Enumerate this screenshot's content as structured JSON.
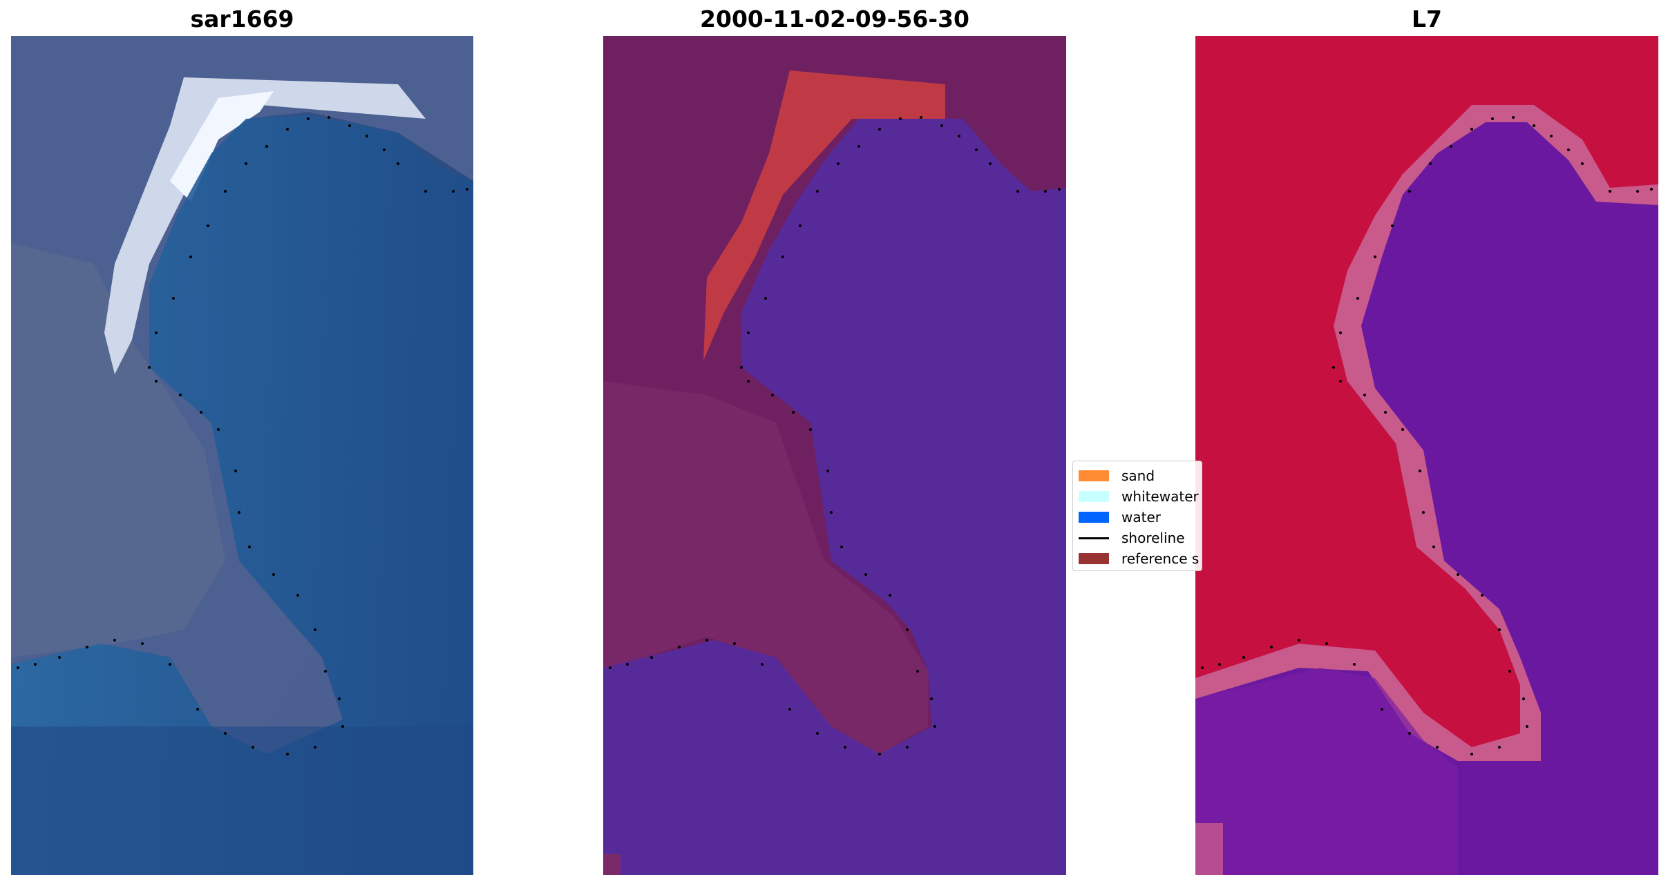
{
  "panels": [
    {
      "title": "sar1669",
      "icon": "satellite-rgb-image"
    },
    {
      "title": "2000-11-02-09-56-30",
      "icon": "classified-image"
    },
    {
      "title": "L7",
      "icon": "mndwi-image"
    }
  ],
  "legend": {
    "items": [
      {
        "label": "sand",
        "color": "#ff8c32",
        "kind": "patch"
      },
      {
        "label": "whitewater",
        "color": "#c8ffff",
        "kind": "patch"
      },
      {
        "label": "water",
        "color": "#0064ff",
        "kind": "patch"
      },
      {
        "label": "shoreline",
        "color": "#000000",
        "kind": "line"
      },
      {
        "label": "reference s",
        "color": "#993333",
        "kind": "patch"
      }
    ]
  },
  "colors": {
    "sar_water": "#1f4f88",
    "sar_land": "#4a5a86",
    "sar_white": "#e8eef8",
    "class_land": "#6e2060",
    "class_water": "#572a9a",
    "class_sand": "#c03a46",
    "mndwi_land": "#c61040",
    "mndwi_water": "#6a18a0",
    "mndwi_edge": "#c85a8c",
    "shoreline_dot": "#000000"
  }
}
